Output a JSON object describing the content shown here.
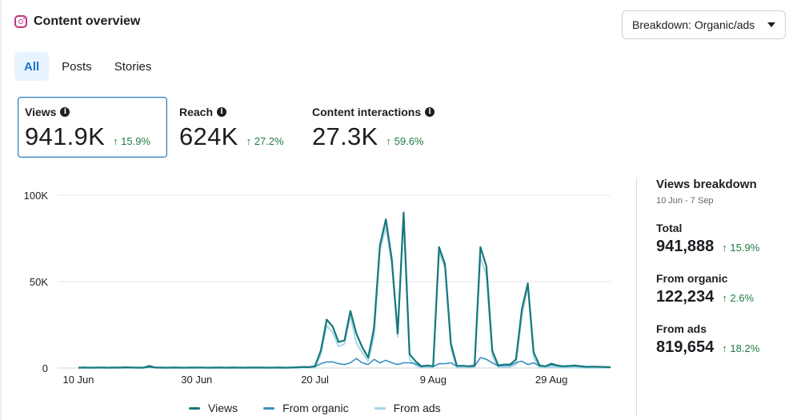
{
  "header": {
    "title": "Content overview",
    "icon": "instagram-icon"
  },
  "breakdown": {
    "label": "Breakdown: Organic/ads"
  },
  "tabs": [
    {
      "label": "All",
      "active": true
    },
    {
      "label": "Posts",
      "active": false
    },
    {
      "label": "Stories",
      "active": false
    }
  ],
  "metrics": [
    {
      "label": "Views",
      "value": "941.9K",
      "change": "↑ 15.9%",
      "selected": true
    },
    {
      "label": "Reach",
      "value": "624K",
      "change": "↑ 27.2%",
      "selected": false
    },
    {
      "label": "Content interactions",
      "value": "27.3K",
      "change": "↑ 59.6%",
      "selected": false
    }
  ],
  "side": {
    "title": "Views breakdown",
    "range": "10 Jun - 7 Sep",
    "total": {
      "label": "Total",
      "value": "941,888",
      "change": "↑ 15.9%"
    },
    "organic": {
      "label": "From organic",
      "value": "122,234",
      "change": "↑ 2.6%"
    },
    "ads": {
      "label": "From ads",
      "value": "819,654",
      "change": "↑ 18.2%"
    }
  },
  "colors": {
    "views": "#16787a",
    "organic": "#3a8fbf",
    "ads": "#a6d5e8",
    "positive": "#1e7b44",
    "accent": "#1b74c9"
  },
  "chart_data": {
    "type": "line",
    "title": "",
    "xlabel": "",
    "ylabel": "",
    "ylim": [
      0,
      100000
    ],
    "y_ticks": [
      0,
      50000,
      100000
    ],
    "y_tick_labels": [
      "0",
      "50K",
      "100K"
    ],
    "x_tick_labels": [
      "10 Jun",
      "30 Jun",
      "20 Jul",
      "9 Aug",
      "29 Aug"
    ],
    "x_tick_index": [
      0,
      20,
      40,
      60,
      80
    ],
    "grid": true,
    "legend_position": "bottom",
    "x_count": 91,
    "series": [
      {
        "name": "Views",
        "values": [
          200,
          300,
          200,
          250,
          300,
          200,
          300,
          250,
          400,
          300,
          250,
          200,
          1200,
          300,
          250,
          200,
          300,
          250,
          200,
          300,
          250,
          300,
          200,
          250,
          300,
          200,
          300,
          250,
          200,
          300,
          250,
          300,
          200,
          250,
          300,
          200,
          300,
          400,
          600,
          500,
          1000,
          10000,
          28000,
          24000,
          15000,
          16000,
          33000,
          20000,
          12000,
          6000,
          23000,
          71000,
          86000,
          63000,
          20000,
          90000,
          8000,
          4000,
          1000,
          1500,
          1000,
          70000,
          60000,
          14000,
          1200,
          1300,
          1000,
          1500,
          70000,
          59000,
          10000,
          1500,
          2000,
          2000,
          5000,
          34000,
          49000,
          9000,
          1500,
          1000,
          2500,
          1500,
          1000,
          1200,
          1500,
          1000,
          700,
          800,
          700,
          600,
          500
        ],
        "color": "#16787a"
      },
      {
        "name": "From organic",
        "values": [
          150,
          200,
          150,
          200,
          250,
          150,
          200,
          200,
          300,
          250,
          200,
          150,
          500,
          250,
          200,
          150,
          250,
          200,
          150,
          250,
          200,
          250,
          150,
          200,
          250,
          150,
          250,
          200,
          150,
          250,
          200,
          250,
          150,
          200,
          250,
          150,
          250,
          300,
          400,
          350,
          800,
          2500,
          3500,
          3500,
          2500,
          2000,
          3000,
          5500,
          3000,
          2000,
          5000,
          3000,
          4500,
          3000,
          2000,
          3000,
          3000,
          2500,
          800,
          1200,
          900,
          2500,
          2500,
          3000,
          1000,
          1100,
          900,
          1000,
          6000,
          5000,
          3000,
          1200,
          1500,
          1500,
          3000,
          4000,
          2000,
          3000,
          1200,
          900,
          1800,
          1200,
          800,
          1000,
          1200,
          800,
          600,
          700,
          600,
          500,
          400
        ],
        "color": "#3a8fbf"
      },
      {
        "name": "From ads",
        "values": [
          50,
          100,
          50,
          50,
          50,
          50,
          100,
          50,
          100,
          50,
          50,
          50,
          700,
          50,
          50,
          50,
          50,
          50,
          50,
          50,
          50,
          50,
          50,
          50,
          50,
          50,
          50,
          50,
          50,
          50,
          50,
          50,
          50,
          50,
          50,
          50,
          50,
          100,
          200,
          150,
          200,
          7500,
          24500,
          20500,
          12500,
          14000,
          30000,
          14500,
          9000,
          4000,
          18000,
          68000,
          81500,
          60000,
          18000,
          87000,
          5000,
          1500,
          200,
          300,
          100,
          67500,
          57500,
          11000,
          200,
          200,
          100,
          500,
          64000,
          54000,
          7000,
          300,
          500,
          500,
          2000,
          30000,
          47000,
          6000,
          300,
          100,
          700,
          300,
          200,
          200,
          300,
          200,
          100,
          100,
          100,
          100,
          100
        ],
        "color": "#a6d5e8"
      }
    ]
  }
}
